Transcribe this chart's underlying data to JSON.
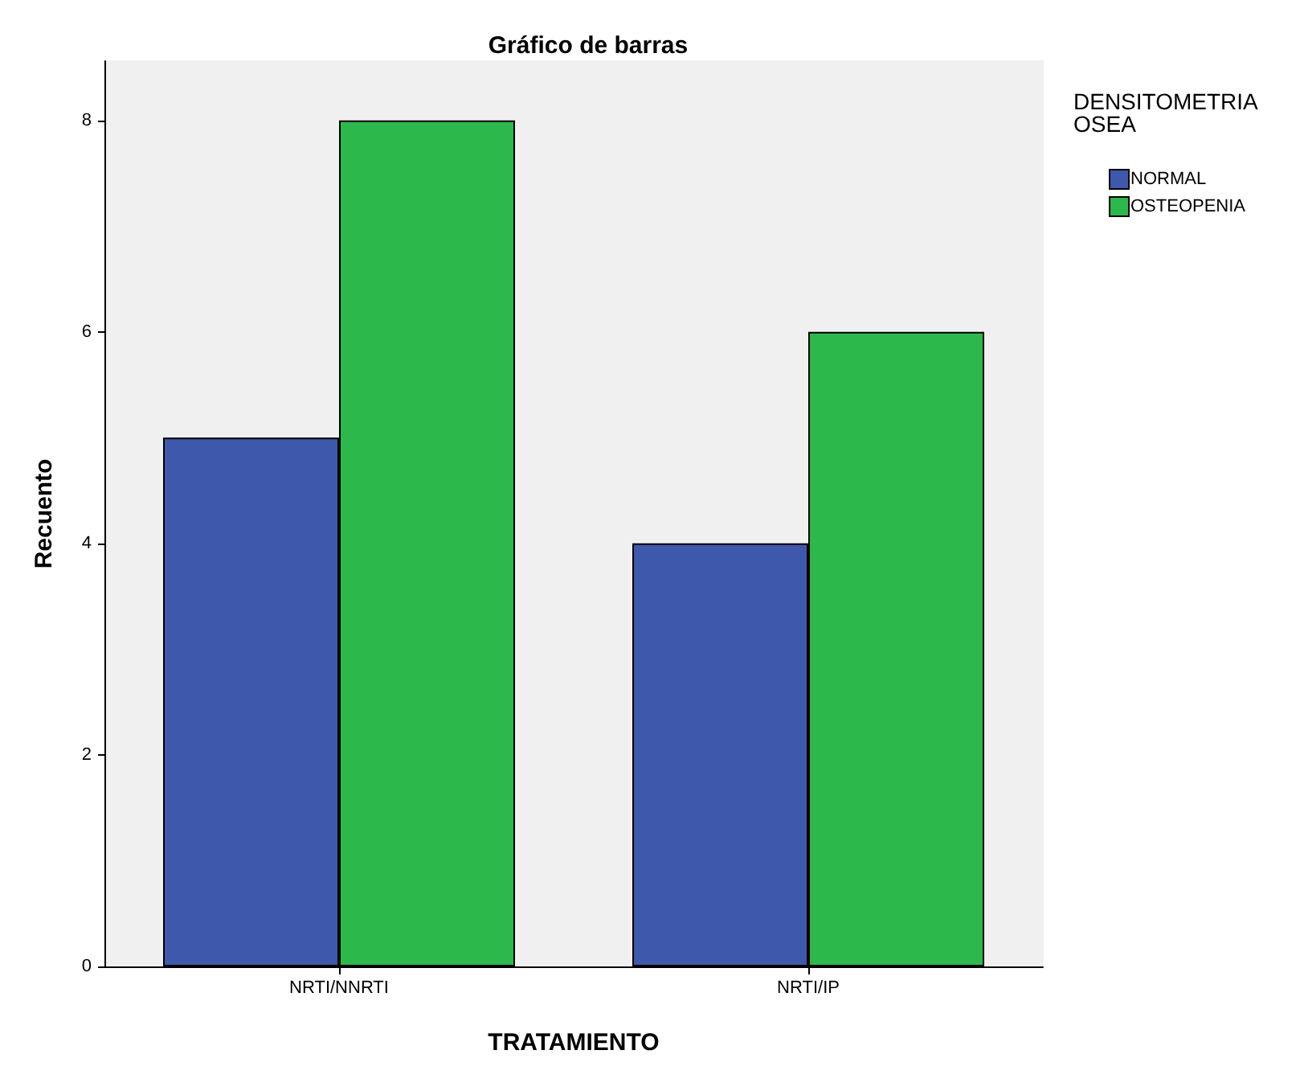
{
  "chart_data": {
    "type": "bar",
    "title": "Gráfico de barras",
    "xlabel": "TRATAMIENTO",
    "ylabel": "Recuento",
    "legend_title": "DENSITOMETRIA OSEA",
    "categories": [
      "NRTI/NNRTI",
      "NRTI/IP"
    ],
    "series": [
      {
        "name": "NORMAL",
        "color": "#3e58ac",
        "values": [
          5,
          4
        ]
      },
      {
        "name": "OSTEOPENIA",
        "color": "#2db84b",
        "values": [
          8,
          6
        ]
      }
    ],
    "ylim": [
      0,
      8.56
    ],
    "yticks": [
      0,
      2,
      4,
      6,
      8
    ],
    "grid": false,
    "legend": "top right"
  }
}
